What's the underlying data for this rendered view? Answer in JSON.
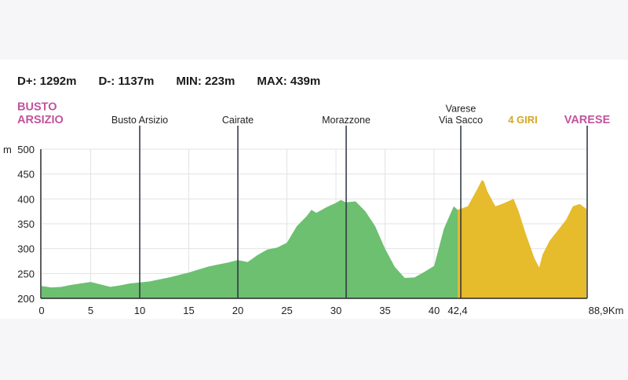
{
  "stats": {
    "gain": "D+: 1292m",
    "loss": "D-: 1137m",
    "min": "MIN: 223m",
    "max": "MAX: 439m"
  },
  "colors": {
    "green": "#6cc070",
    "yellow": "#e6bb2c",
    "pink": "#c2549c",
    "gold": "#d4a723",
    "axis": "#2a2a2a",
    "grid": "#e3e3e3"
  },
  "chart_data": {
    "type": "area",
    "y_unit": "m",
    "x_unit_label": "88,9Km",
    "ylim": [
      200,
      500
    ],
    "y_ticks": [
      200,
      250,
      300,
      350,
      400,
      450,
      500
    ],
    "x_tick_labels": [
      "0",
      "5",
      "10",
      "15",
      "20",
      "25",
      "30",
      "35",
      "40",
      "42,4",
      "88,9Km"
    ],
    "grid": true,
    "locations": [
      {
        "name_lines": [
          "BUSTO",
          "ARSIZIO"
        ],
        "style": "start"
      },
      {
        "name_lines": [
          "Busto Arsizio"
        ],
        "style": "normal"
      },
      {
        "name_lines": [
          "Cairate"
        ],
        "style": "normal"
      },
      {
        "name_lines": [
          "Morazzone"
        ],
        "style": "normal"
      },
      {
        "name_lines": [
          "Varese",
          "Via Sacco"
        ],
        "style": "normal"
      },
      {
        "name_lines": [
          "4 GIRI"
        ],
        "style": "laps"
      },
      {
        "name_lines": [
          "VARESE"
        ],
        "style": "finish"
      }
    ],
    "series": [
      {
        "segment": "approach",
        "x": [
          0,
          1,
          2,
          3,
          4,
          5,
          6,
          7,
          8,
          9,
          10,
          11,
          12,
          13,
          14,
          15,
          16,
          17,
          18,
          19,
          20,
          21,
          22,
          23,
          24,
          25,
          26,
          27,
          27.5,
          28,
          29,
          30,
          30.5,
          31,
          32,
          33,
          34,
          34.5,
          35,
          36,
          37,
          38,
          39,
          40,
          41,
          42,
          42.4
        ],
        "values": [
          225,
          222,
          223,
          227,
          230,
          233,
          228,
          223,
          226,
          230,
          232,
          234,
          238,
          242,
          247,
          252,
          258,
          264,
          268,
          272,
          277,
          273,
          287,
          298,
          302,
          312,
          345,
          365,
          378,
          372,
          383,
          392,
          398,
          393,
          395,
          375,
          345,
          322,
          300,
          263,
          241,
          242,
          253,
          265,
          340,
          385,
          378
        ]
      },
      {
        "segment": "4 giri",
        "x": [
          42.4,
          43.9,
          45.4,
          46.0,
          46.3,
          46.8,
          48.0,
          49.0,
          50.7,
          51.5,
          52.5,
          53.8,
          54.5,
          55.0,
          56.0,
          58.5,
          59.5,
          60.5,
          61.5
        ],
        "values": [
          378,
          385,
          422,
          438,
          435,
          415,
          385,
          390,
          400,
          373,
          330,
          280,
          262,
          288,
          315,
          358,
          385,
          390,
          380
        ]
      }
    ]
  }
}
